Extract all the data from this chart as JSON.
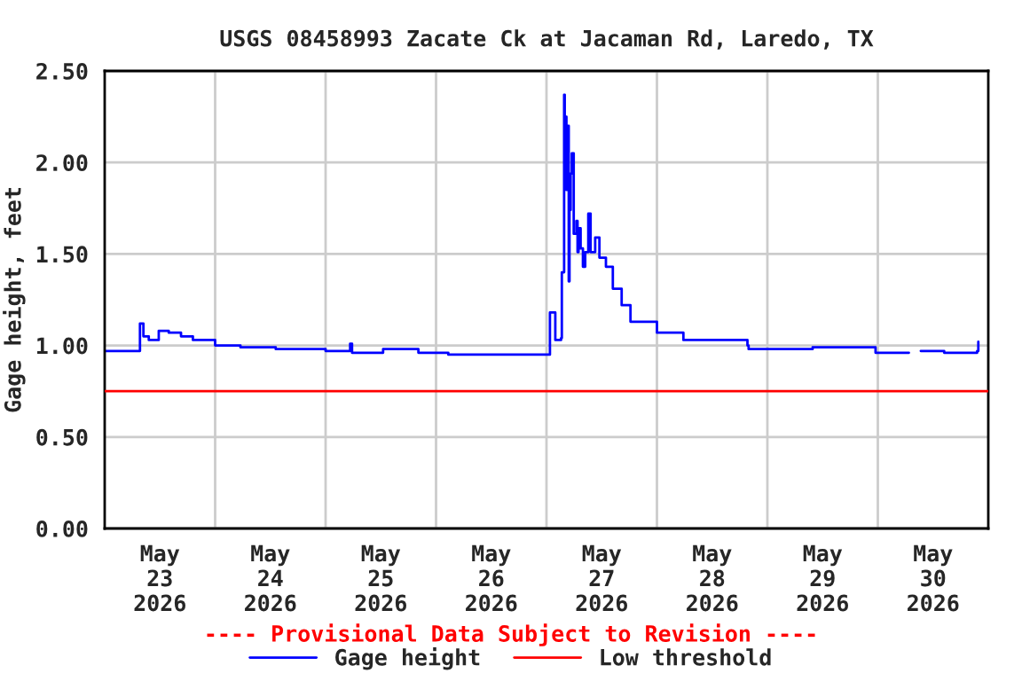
{
  "chart_data": {
    "type": "step",
    "title": "USGS 08458993 Zacate Ck at Jacaman Rd, Laredo, TX",
    "ylabel": "Gage height, feet",
    "annotations": [
      "---- Provisional Data Subject to Revision ----"
    ],
    "series": [
      {
        "name": "Gage height",
        "color": "#0000ff",
        "x": [
          "2026-05-23T00:00",
          "2026-05-23T07:25",
          "2026-05-23T07:40",
          "2026-05-23T08:25",
          "2026-05-23T09:35",
          "2026-05-23T11:45",
          "2026-05-23T13:55",
          "2026-05-23T16:35",
          "2026-05-23T19:10",
          "2026-05-24T00:00",
          "2026-05-24T05:30",
          "2026-05-24T13:10",
          "2026-05-25T00:00",
          "2026-05-25T05:00",
          "2026-05-25T05:20",
          "2026-05-25T05:45",
          "2026-05-25T12:30",
          "2026-05-25T20:10",
          "2026-05-26T02:40",
          "2026-05-27T00:30",
          "2026-05-27T00:45",
          "2026-05-27T01:40",
          "2026-05-27T01:55",
          "2026-05-27T03:10",
          "2026-05-27T03:20",
          "2026-05-27T03:50",
          "2026-05-27T03:58",
          "2026-05-27T04:05",
          "2026-05-27T04:20",
          "2026-05-27T04:35",
          "2026-05-27T04:50",
          "2026-05-27T05:00",
          "2026-05-27T05:15",
          "2026-05-27T05:30",
          "2026-05-27T05:55",
          "2026-05-27T06:30",
          "2026-05-27T06:45",
          "2026-05-27T06:58",
          "2026-05-27T07:25",
          "2026-05-27T07:55",
          "2026-05-27T08:25",
          "2026-05-27T09:05",
          "2026-05-27T09:35",
          "2026-05-27T10:35",
          "2026-05-27T11:30",
          "2026-05-27T12:55",
          "2026-05-27T14:25",
          "2026-05-27T16:20",
          "2026-05-27T18:15",
          "2026-05-28T00:00",
          "2026-05-28T05:45",
          "2026-05-28T19:40",
          "2026-05-28T19:55",
          "2026-05-29T01:00",
          "2026-05-29T09:50",
          "2026-05-29T23:30",
          "2026-05-30T04:05",
          "2026-05-30T06:45",
          "2026-05-30T09:20",
          "2026-05-30T14:25",
          "2026-05-30T21:35",
          "2026-05-30T21:50"
        ],
        "values": [
          0.97,
          0.97,
          1.12,
          1.05,
          1.03,
          1.08,
          1.07,
          1.05,
          1.03,
          1.0,
          0.99,
          0.98,
          0.97,
          0.97,
          1.01,
          0.96,
          0.98,
          0.96,
          0.95,
          0.95,
          1.18,
          1.18,
          1.03,
          1.04,
          1.4,
          2.37,
          1.95,
          2.25,
          1.85,
          2.2,
          1.35,
          1.74,
          1.94,
          2.05,
          1.61,
          1.68,
          1.51,
          1.64,
          1.53,
          1.43,
          1.51,
          1.72,
          1.51,
          1.59,
          1.48,
          1.43,
          1.31,
          1.22,
          1.13,
          1.07,
          1.03,
          1.0,
          0.98,
          0.98,
          0.99,
          0.96,
          0.96,
          null,
          0.97,
          0.96,
          0.97,
          1.02
        ]
      }
    ],
    "ref_lines": [
      {
        "axis": "y",
        "value": 0.75,
        "label": "Low threshold",
        "color": "#ff0000"
      }
    ],
    "xlim": [
      "2026-05-23T00:00",
      "2026-05-31T00:00"
    ],
    "xticks": [
      {
        "value": "2026-05-23T12:00",
        "label": "May\n23\n2026"
      },
      {
        "value": "2026-05-24T00:00",
        "label": null
      },
      {
        "value": "2026-05-24T12:00",
        "label": "May\n24\n2026"
      },
      {
        "value": "2026-05-25T00:00",
        "label": null
      },
      {
        "value": "2026-05-25T12:00",
        "label": "May\n25\n2026"
      },
      {
        "value": "2026-05-26T00:00",
        "label": null
      },
      {
        "value": "2026-05-26T12:00",
        "label": "May\n26\n2026"
      },
      {
        "value": "2026-05-27T00:00",
        "label": null
      },
      {
        "value": "2026-05-27T12:00",
        "label": "May\n27\n2026"
      },
      {
        "value": "2026-05-28T00:00",
        "label": null
      },
      {
        "value": "2026-05-28T12:00",
        "label": "May\n28\n2026"
      },
      {
        "value": "2026-05-29T00:00",
        "label": null
      },
      {
        "value": "2026-05-29T12:00",
        "label": "May\n29\n2026"
      },
      {
        "value": "2026-05-30T00:00",
        "label": null
      },
      {
        "value": "2026-05-30T12:00",
        "label": "May\n30\n2026"
      }
    ],
    "ylim": [
      0,
      2.5
    ],
    "yticks": [
      {
        "value": 0,
        "label": "0.00"
      },
      {
        "value": 0.5,
        "label": "0.50"
      },
      {
        "value": 1.0,
        "label": "1.00"
      },
      {
        "value": 1.5,
        "label": "1.50"
      },
      {
        "value": 2.0,
        "label": "2.00"
      },
      {
        "value": 2.5,
        "label": "2.50"
      }
    ],
    "grid": true,
    "legend": "bottom",
    "line_style": "solid"
  }
}
